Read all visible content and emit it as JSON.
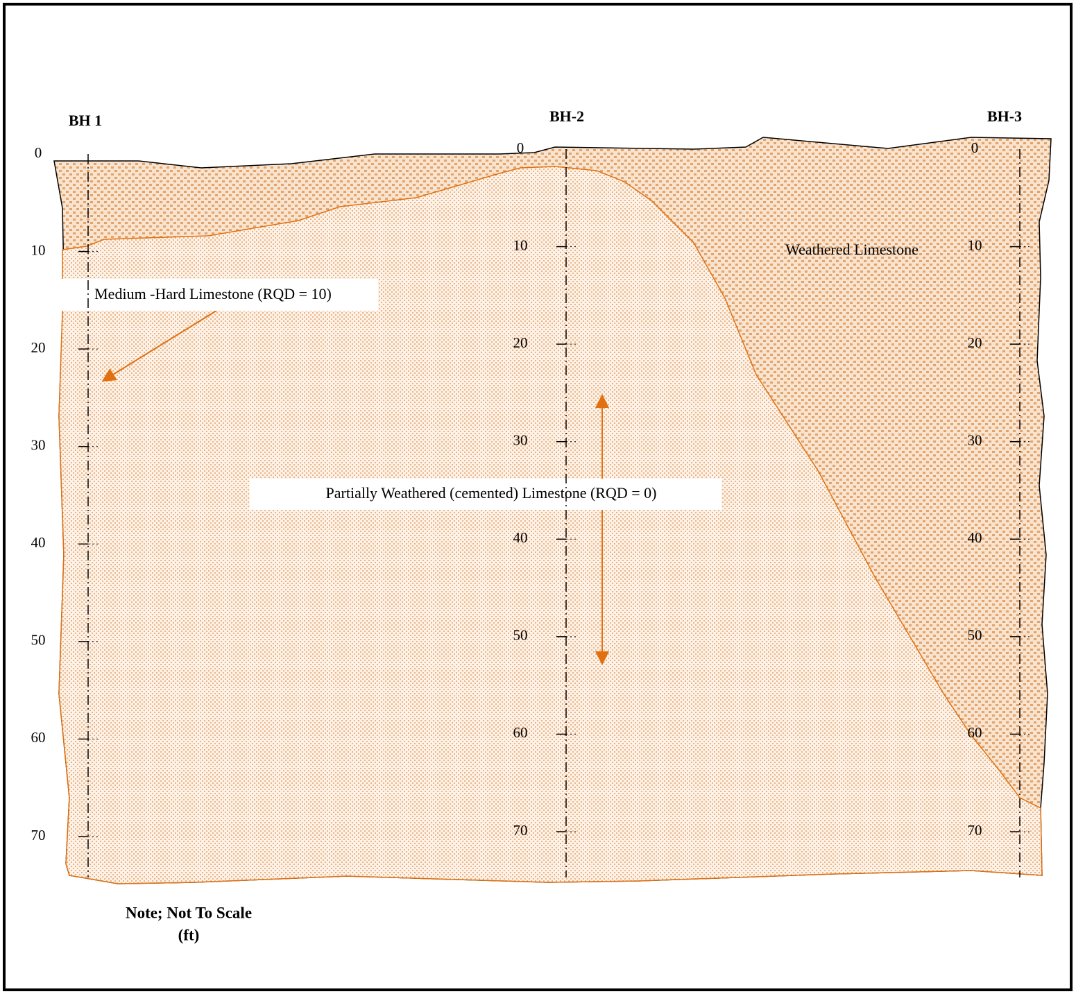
{
  "boreholes": [
    {
      "label": "BH 1",
      "depths": [
        0,
        10,
        20,
        30,
        40,
        50,
        60,
        70
      ]
    },
    {
      "label": "BH-2",
      "depths": [
        0,
        10,
        20,
        30,
        40,
        50,
        60,
        70
      ]
    },
    {
      "label": "BH-3",
      "depths": [
        0,
        10,
        20,
        30,
        40,
        50,
        60,
        70
      ]
    }
  ],
  "layers": [
    {
      "label": "Weathered Limestone"
    },
    {
      "label": "Medium -Hard Limestone (RQD = 10)"
    },
    {
      "label": "Partially Weathered (cemented) Limestone (RQD = 0)"
    }
  ],
  "note": {
    "line1": "Note; Not  To Scale",
    "line2": "(ft)"
  }
}
